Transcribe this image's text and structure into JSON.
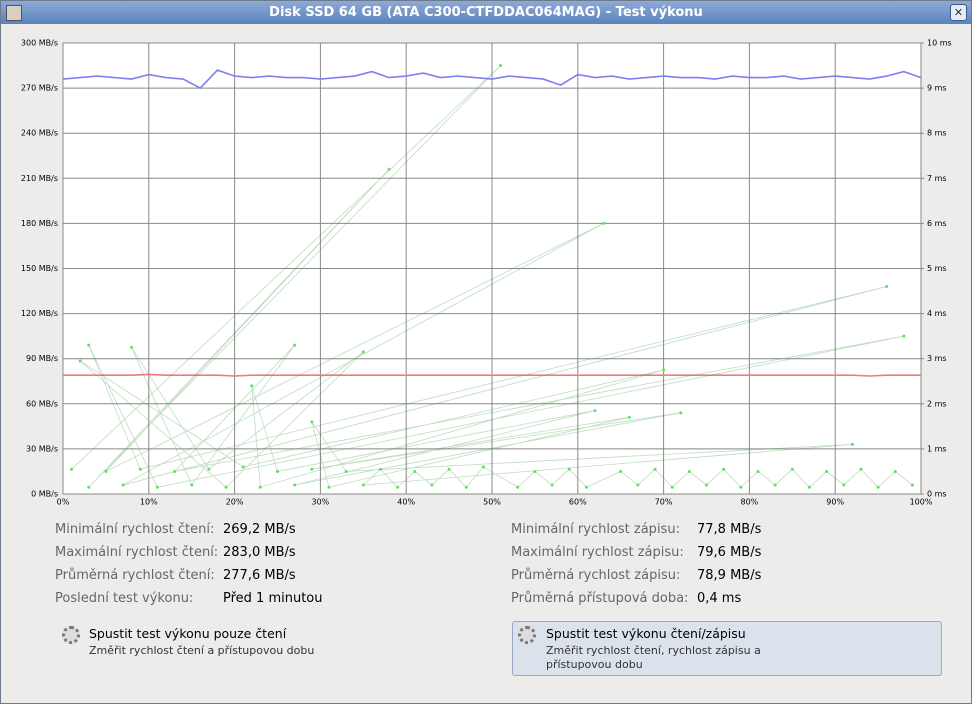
{
  "window": {
    "title": "Disk SSD 64 GB (ATA C300-CTFDDAC064MAG) - Test výkonu"
  },
  "chart_data": {
    "type": "line",
    "x": [
      0,
      2,
      4,
      6,
      8,
      10,
      12,
      14,
      16,
      18,
      20,
      22,
      24,
      26,
      28,
      30,
      32,
      34,
      36,
      38,
      40,
      42,
      44,
      46,
      48,
      50,
      52,
      54,
      56,
      58,
      60,
      62,
      64,
      66,
      68,
      70,
      72,
      74,
      76,
      78,
      80,
      82,
      84,
      86,
      88,
      90,
      92,
      94,
      96,
      98,
      100
    ],
    "xlim": [
      0,
      100
    ],
    "xticks": [
      {
        "value": 0,
        "label": "0%"
      },
      {
        "value": 10,
        "label": "10%"
      },
      {
        "value": 20,
        "label": "20%"
      },
      {
        "value": 30,
        "label": "30%"
      },
      {
        "value": 40,
        "label": "40%"
      },
      {
        "value": 50,
        "label": "50%"
      },
      {
        "value": 60,
        "label": "60%"
      },
      {
        "value": 70,
        "label": "70%"
      },
      {
        "value": 80,
        "label": "80%"
      },
      {
        "value": 90,
        "label": "90%"
      },
      {
        "value": 100,
        "label": "100%"
      }
    ],
    "ylim": [
      0,
      300
    ],
    "yticks": [
      {
        "value": 0,
        "label": "0 MB/s"
      },
      {
        "value": 30,
        "label": "30 MB/s"
      },
      {
        "value": 60,
        "label": "60 MB/s"
      },
      {
        "value": 90,
        "label": "90 MB/s"
      },
      {
        "value": 120,
        "label": "120 MB/s"
      },
      {
        "value": 150,
        "label": "150 MB/s"
      },
      {
        "value": 180,
        "label": "180 MB/s"
      },
      {
        "value": 210,
        "label": "210 MB/s"
      },
      {
        "value": 240,
        "label": "240 MB/s"
      },
      {
        "value": 270,
        "label": "270 MB/s"
      },
      {
        "value": 300,
        "label": "300 MB/s"
      }
    ],
    "y2lim": [
      0,
      10
    ],
    "y2ticks": [
      {
        "value": 0,
        "label": "0 ms"
      },
      {
        "value": 1,
        "label": "1 ms"
      },
      {
        "value": 2,
        "label": "2 ms"
      },
      {
        "value": 3,
        "label": "3 ms"
      },
      {
        "value": 4,
        "label": "4 ms"
      },
      {
        "value": 5,
        "label": "5 ms"
      },
      {
        "value": 6,
        "label": "6 ms"
      },
      {
        "value": 7,
        "label": "7 ms"
      },
      {
        "value": 8,
        "label": "8 ms"
      },
      {
        "value": 9,
        "label": "9 ms"
      },
      {
        "value": 10,
        "label": "10 ms"
      }
    ],
    "grid": true,
    "series": [
      {
        "color": "#7f7ff0",
        "values": [
          276,
          277,
          278,
          277,
          276,
          279,
          277,
          276,
          270,
          282,
          278,
          277,
          278,
          277,
          277,
          276,
          277,
          278,
          281,
          277,
          278,
          280,
          277,
          278,
          277,
          276,
          278,
          277,
          276,
          272,
          279,
          277,
          278,
          276,
          277,
          278,
          277,
          277,
          276,
          278,
          277,
          277,
          278,
          276,
          277,
          278,
          277,
          276,
          278,
          281,
          277
        ]
      },
      {
        "color": "#ef7b7b",
        "values": [
          79,
          79,
          79,
          79,
          79,
          79.5,
          79,
          79,
          79,
          79,
          78.5,
          79,
          79,
          79,
          79,
          79,
          79,
          79,
          79,
          79,
          79,
          79,
          79,
          79,
          79,
          79,
          79,
          79,
          79,
          79,
          79,
          79,
          79,
          79,
          79,
          79,
          79,
          79,
          79,
          79,
          79,
          79,
          79,
          79,
          79,
          79,
          79,
          78.5,
          79,
          79,
          79
        ]
      },
      {
        "color": "#5fe05f",
        "axis": "y2",
        "x": [
          1,
          51,
          3,
          38,
          5,
          63,
          7,
          96,
          9,
          3,
          11,
          98,
          13,
          27,
          15,
          8,
          17,
          35,
          19,
          2,
          21,
          70,
          23,
          22,
          25,
          62,
          27,
          72,
          29,
          66,
          31,
          29,
          33,
          92,
          35,
          37,
          39,
          41,
          43,
          45,
          47,
          49,
          53,
          55,
          57,
          59,
          61,
          65,
          67,
          69,
          71,
          73,
          75,
          77,
          79,
          81,
          83,
          85,
          87,
          89,
          91,
          93,
          95,
          97,
          99
        ],
        "values": [
          0.55,
          9.5,
          0.15,
          7.2,
          0.5,
          6,
          0.2,
          4.6,
          0.55,
          3.3,
          0.15,
          3.5,
          0.5,
          3.3,
          0.2,
          3.25,
          0.55,
          3.15,
          0.15,
          2.95,
          0.6,
          2.75,
          0.15,
          2.4,
          0.5,
          1.85,
          0.2,
          1.8,
          0.55,
          1.7,
          0.15,
          1.6,
          0.5,
          1.1,
          0.2,
          0.55,
          0.15,
          0.5,
          0.2,
          0.55,
          0.15,
          0.6,
          0.15,
          0.5,
          0.2,
          0.55,
          0.15,
          0.5,
          0.2,
          0.55,
          0.15,
          0.5,
          0.2,
          0.55,
          0.15,
          0.5,
          0.2,
          0.55,
          0.15,
          0.5,
          0.2,
          0.55,
          0.15,
          0.5,
          0.2
        ]
      }
    ]
  },
  "stats_left": [
    {
      "label": "Minimální rychlost čtení:",
      "value": "269,2 MB/s"
    },
    {
      "label": "Maximální rychlost čtení:",
      "value": "283,0 MB/s"
    },
    {
      "label": "Průměrná rychlost čtení:",
      "value": "277,6 MB/s"
    },
    {
      "label": "Poslední test výkonu:",
      "value": "Před 1 minutou"
    }
  ],
  "stats_right": [
    {
      "label": "Minimální rychlost zápisu:",
      "value": "77,8 MB/s"
    },
    {
      "label": "Maximální rychlost zápisu:",
      "value": "79,6 MB/s"
    },
    {
      "label": "Průměrná rychlost zápisu:",
      "value": "78,9 MB/s"
    },
    {
      "label": "Průměrná přístupová doba:",
      "value": "0,4 ms"
    }
  ],
  "buttons": [
    {
      "title": "Spustit test výkonu pouze čtení",
      "description": "Změřit rychlost čtení a přístupovou dobu"
    },
    {
      "title": "Spustit test výkonu čtení/zápisu",
      "description": [
        "Změřit rychlost čtení, rychlost zápisu a",
        "přístupovou dobu"
      ]
    }
  ]
}
